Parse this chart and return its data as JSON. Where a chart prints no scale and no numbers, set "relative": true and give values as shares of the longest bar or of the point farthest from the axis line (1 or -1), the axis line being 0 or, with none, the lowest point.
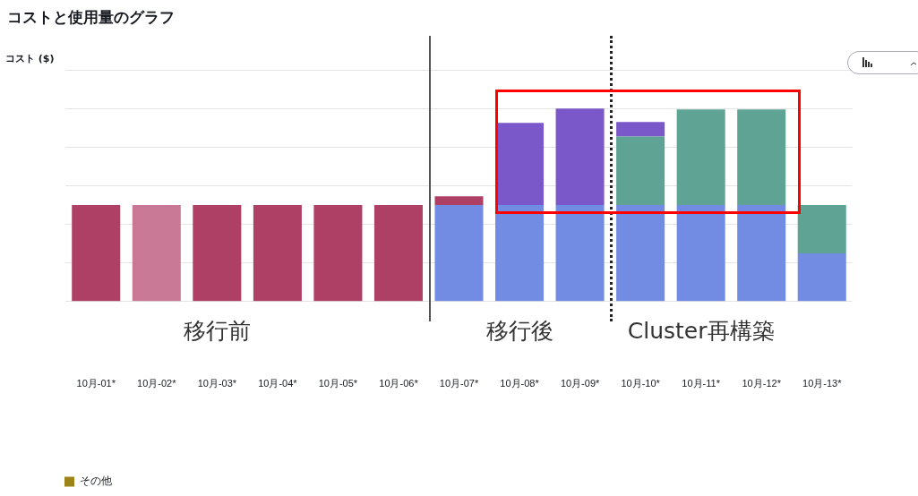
{
  "chart_data": {
    "type": "bar",
    "title": "コストと使用量のグラフ",
    "ylabel": "コスト ($)",
    "categories": [
      "10月-01*",
      "10月-02*",
      "10月-03*",
      "10月-04*",
      "10月-05*",
      "10月-06*",
      "10月-07*",
      "10月-08*",
      "10月-09*",
      "10月-10*",
      "10月-11*",
      "10月-12*",
      "10月-13*"
    ],
    "stacked": true,
    "relative": true,
    "grid": "y",
    "legend": "bottom left",
    "annotations": [
      "移行前",
      "移行後",
      "Cluster再構築"
    ],
    "ref_lines": [
      {
        "axis": "x",
        "value": "10月-07*",
        "color": "#555555",
        "line_style": "solid"
      },
      {
        "axis": "x",
        "value": "10月-10*",
        "color": "#222222",
        "line_style": "dotted"
      }
    ],
    "series": [
      {
        "color": "#738ce3",
        "values": [
          null,
          null,
          null,
          null,
          null,
          null,
          0.5,
          0.5,
          0.5,
          0.5,
          0.5,
          0.5,
          0.25
        ]
      },
      {
        "colors": [
          "#ae3f65",
          "#c97995",
          "#ae3f65",
          "#ae3f65",
          "#ae3f65",
          "#ae3f65",
          "#ae3f65",
          "#ae3f65",
          "#ae3f65",
          "#ae3f65",
          "#ae3f65",
          "#ae3f65",
          "#ae3f65"
        ],
        "values": [
          0.5,
          0.5,
          0.5,
          0.5,
          0.5,
          0.5,
          0.045,
          null,
          null,
          null,
          null,
          null,
          null
        ]
      },
      {
        "color": "#5fa395",
        "values": [
          null,
          null,
          null,
          null,
          null,
          null,
          null,
          null,
          null,
          0.355,
          0.495,
          0.495,
          0.25
        ]
      },
      {
        "color": "#7b58c9",
        "values": [
          null,
          null,
          null,
          null,
          null,
          null,
          null,
          0.425,
          0.5,
          0.075,
          null,
          null,
          null
        ]
      },
      {
        "name": "その他",
        "color": "#9c8419",
        "values": [
          null,
          null,
          null,
          null,
          null,
          null,
          null,
          null,
          null,
          null,
          null,
          null,
          null
        ]
      }
    ]
  }
}
